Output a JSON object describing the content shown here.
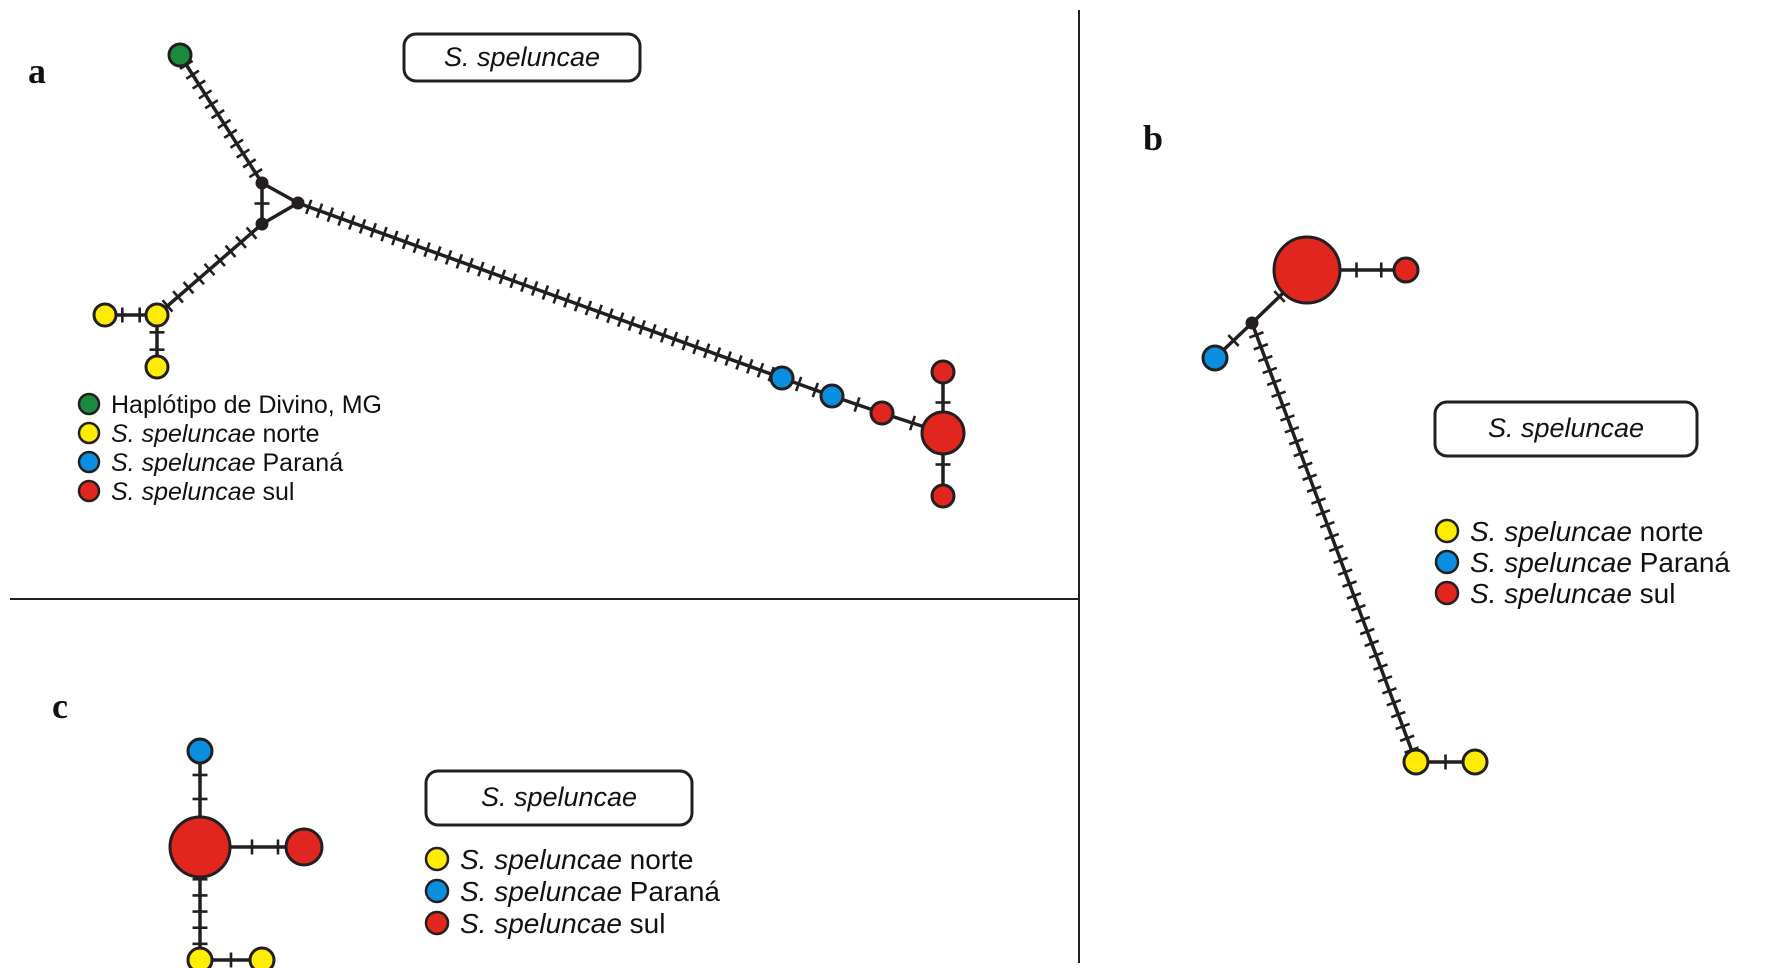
{
  "colors": {
    "north": "#ffec00",
    "parana": "#0a8fe0",
    "south": "#e0261f",
    "divino": "#1a8a3e",
    "line": "#231f20",
    "node": "#231f20"
  },
  "panels": {
    "a": {
      "letter": "a",
      "species_label": "S. speluncae",
      "legend": [
        {
          "color": "divino",
          "italic": "",
          "normal": "Haplótipo de Divino, MG"
        },
        {
          "color": "north",
          "italic": "S. speluncae",
          "normal": " norte"
        },
        {
          "color": "parana",
          "italic": "S. speluncae",
          "normal": " Paraná"
        },
        {
          "color": "south",
          "italic": "S. speluncae",
          "normal": " sul"
        }
      ]
    },
    "b": {
      "letter": "b",
      "species_label": "S. speluncae",
      "legend": [
        {
          "color": "north",
          "italic": "S. speluncae",
          "normal": " norte"
        },
        {
          "color": "parana",
          "italic": "S. speluncae",
          "normal": " Paraná"
        },
        {
          "color": "south",
          "italic": "S. speluncae",
          "normal": " sul"
        }
      ]
    },
    "c": {
      "letter": "c",
      "species_label": "S. speluncae",
      "legend": [
        {
          "color": "north",
          "italic": "S. speluncae",
          "normal": " norte"
        },
        {
          "color": "parana",
          "italic": "S. speluncae",
          "normal": " Paraná"
        },
        {
          "color": "south",
          "italic": "S. speluncae",
          "normal": " sul"
        }
      ]
    }
  }
}
